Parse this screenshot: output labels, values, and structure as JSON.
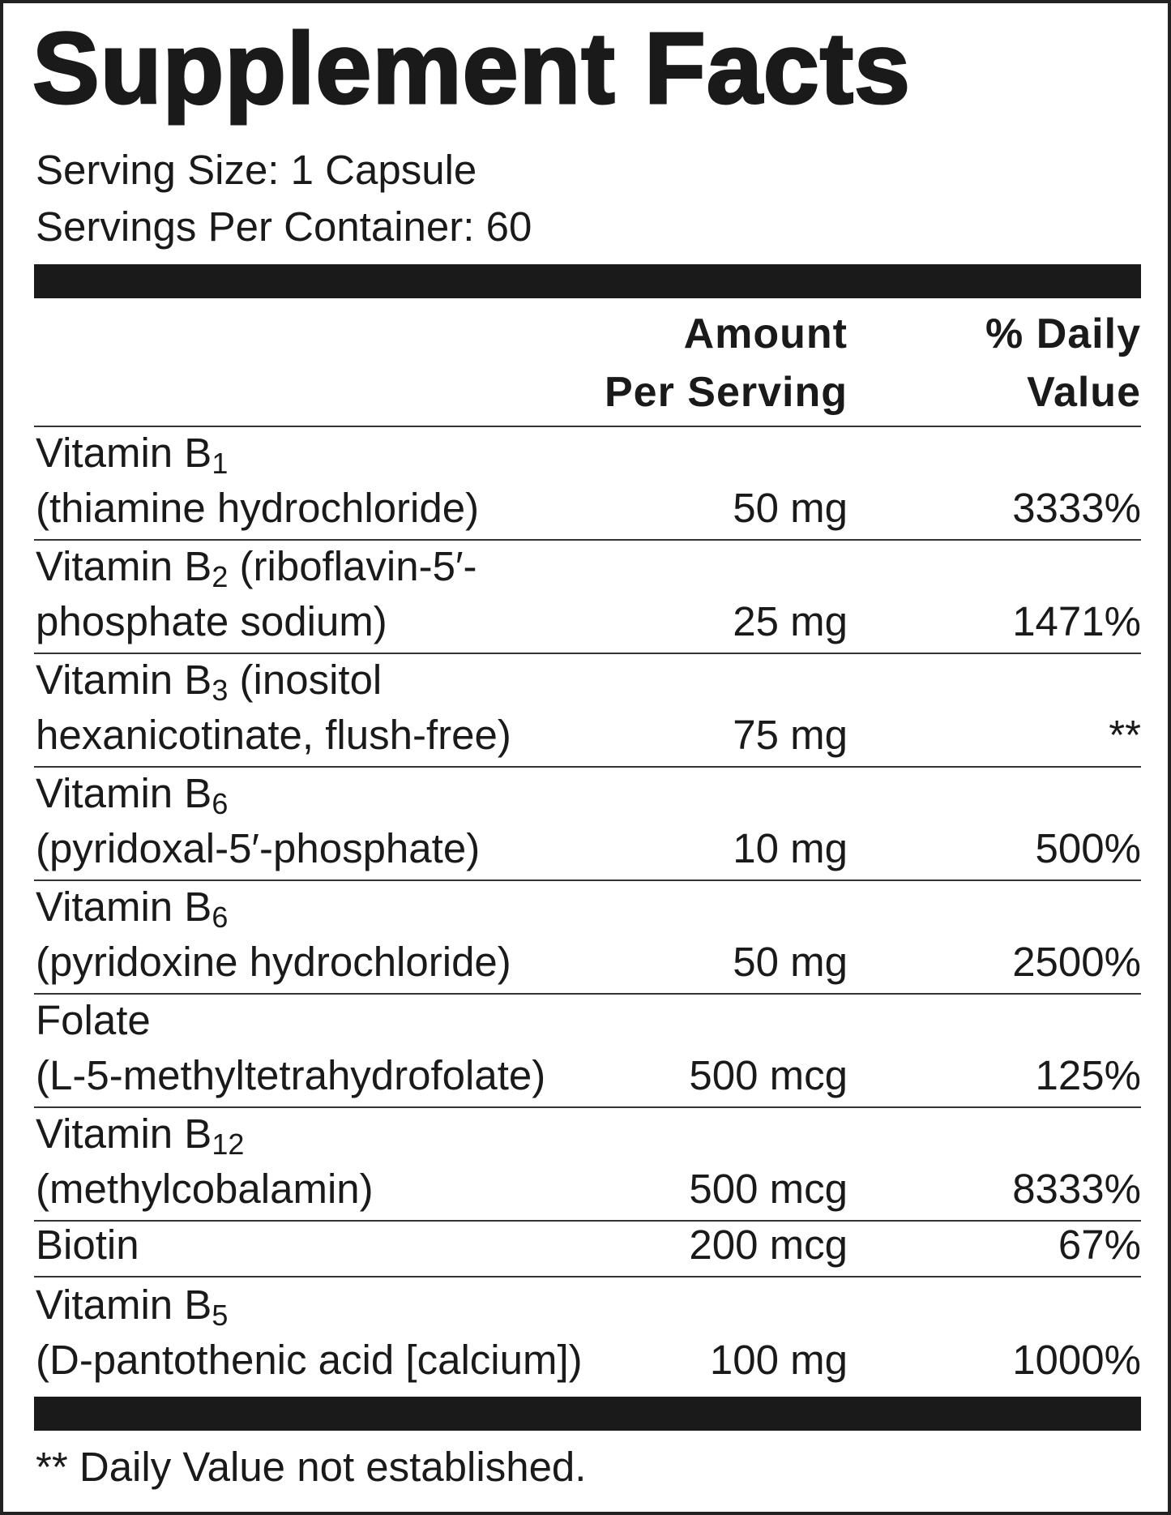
{
  "title": "Supplement Facts",
  "serving_size": "Serving Size: 1 Capsule",
  "servings_per_container": "Servings Per Container: 60",
  "header": {
    "amount": [
      "Amount",
      "Per Serving"
    ],
    "daily_value": [
      "% Daily",
      "Value"
    ]
  },
  "rows": [
    {
      "name": "Vitamin B",
      "subscript": "1",
      "detail": "(thiamine hydrochloride)",
      "amount": "50 mg",
      "daily_value": "3333%"
    },
    {
      "name": "Vitamin B",
      "subscript": "2",
      "name_rest": " (riboflavin-5′-",
      "detail": "phosphate sodium)",
      "amount": "25 mg",
      "daily_value": "1471%"
    },
    {
      "name": "Vitamin B",
      "subscript": "3",
      "name_rest": " (inositol",
      "detail": "hexanicotinate, flush-free)",
      "amount": "75 mg",
      "daily_value": "**"
    },
    {
      "name": "Vitamin B",
      "subscript": "6",
      "detail": "(pyridoxal-5′-phosphate)",
      "amount": "10 mg",
      "daily_value": "500%"
    },
    {
      "name": "Vitamin B",
      "subscript": "6",
      "detail": "(pyridoxine hydrochloride)",
      "amount": "50 mg",
      "daily_value": "2500%"
    },
    {
      "name": "Folate",
      "detail": "(L-5-methyltetrahydrofolate)",
      "amount": "500 mcg",
      "daily_value": "125%"
    },
    {
      "name": "Vitamin B",
      "subscript": "12",
      "detail": "(methylcobalamin)",
      "amount": "500 mcg",
      "daily_value": "8333%"
    },
    {
      "name": "Biotin",
      "amount": "200 mcg",
      "daily_value": "67%"
    },
    {
      "name": "Vitamin B",
      "subscript": "5",
      "detail": "(D-pantothenic acid [calcium])",
      "amount": "100 mg",
      "daily_value": "1000%"
    }
  ],
  "footnote": "** Daily Value not established."
}
